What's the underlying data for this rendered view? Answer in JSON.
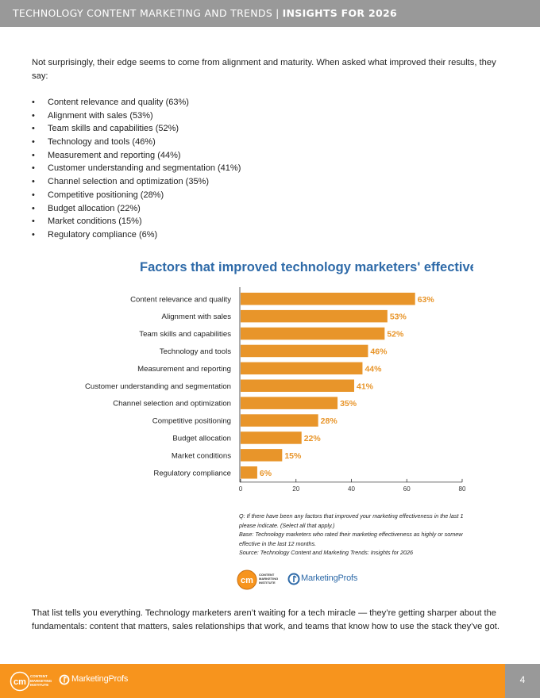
{
  "header": {
    "left": "TECHNOLOGY CONTENT MARKETING AND TRENDS",
    "sep": "|",
    "right": "INSIGHTS FOR 2026"
  },
  "intro": "Not surprisingly, their edge seems to come from alignment and maturity. When asked what improved their results, they say:",
  "bullets": [
    "Content relevance and quality (63%)",
    "Alignment with sales (53%)",
    "Team skills and capabilities (52%)",
    "Technology and tools (46%)",
    "Measurement and reporting (44%)",
    "Customer understanding and segmentation (41%)",
    "Channel selection and optimization (35%)",
    "Competitive positioning (28%)",
    "Budget allocation (22%)",
    "Market conditions (15%)",
    "Regulatory compliance (6%)"
  ],
  "bullet_glyph": "•",
  "chart_data": {
    "type": "bar",
    "orientation": "horizontal",
    "title": "Factors that improved technology marketers' effectivenes",
    "categories": [
      "Content relevance and quality",
      "Alignment with sales",
      "Team skills and capabilities",
      "Technology and tools",
      "Measurement and reporting",
      "Customer understanding and segmentation",
      "Channel selection and optimization",
      "Competitive positioning",
      "Budget allocation",
      "Market conditions",
      "Regulatory compliance"
    ],
    "values": [
      63,
      53,
      52,
      46,
      44,
      41,
      35,
      28,
      22,
      15,
      6
    ],
    "value_labels": [
      "63%",
      "53%",
      "52%",
      "46%",
      "44%",
      "41%",
      "35%",
      "28%",
      "22%",
      "15%",
      "6%"
    ],
    "xlim": [
      0,
      80
    ],
    "x_ticks": [
      "0",
      "20",
      "40",
      "60",
      "80"
    ],
    "x_tick_values": [
      0,
      20,
      40,
      60,
      80
    ],
    "bar_color": "#e8952a",
    "label_color": "#e8952a",
    "title_color": "#2e6aa8",
    "grid": false
  },
  "notes": [
    "Q: If there have been any factors that improved your marketing effectiveness in the last 1",
    "please indicate. (Select all that apply.)",
    "Base: Technology marketers who rated their marketing effectiveness as highly or somew",
    "effective in the last 12 months.",
    "Source: Technology Content and Marketing Trends: Insights for 2026"
  ],
  "logos": {
    "cmi_mark": "cm",
    "cmi_text": [
      "CONTENT",
      "MARKETING",
      "INSTITUTE"
    ],
    "mp_text": "MarketingProfs"
  },
  "closing": "That list tells you everything. Technology marketers aren’t waiting for a tech miracle — they’re getting sharper about the fundamentals: content that matters, sales relationships that work, and teams that know how to use the stack they’ve got.",
  "footer": {
    "page_number": "4",
    "cmi_mark": "cm",
    "cmi_text": [
      "CONTENT",
      "MARKETING",
      "INSTITUTE"
    ],
    "mp_text": "MarketingProfs"
  },
  "colors": {
    "header_bg": "#999999",
    "footer_bg": "#f7941d",
    "brand_blue": "#2e6aa8",
    "brand_orange": "#f7941d"
  }
}
